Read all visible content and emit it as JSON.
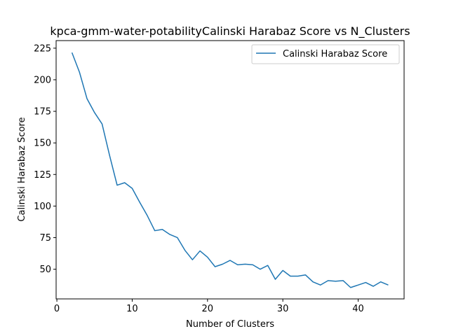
{
  "chart_data": {
    "type": "line",
    "title": "kpca-gmm-water-potabilityCalinski Harabaz Score vs N_Clusters",
    "xlabel": "Number of Clusters",
    "ylabel": "Calinski Harabaz Score",
    "xlim": [
      -0.1,
      46.1
    ],
    "ylim": [
      26.5,
      231
    ],
    "xticks": [
      0,
      10,
      20,
      30,
      40
    ],
    "yticks": [
      50,
      75,
      100,
      125,
      150,
      175,
      200,
      225
    ],
    "grid": false,
    "legend_position": "upper right",
    "series": [
      {
        "name": "Calinski Harabaz Score",
        "color": "#1f77b4",
        "x": [
          2,
          3,
          4,
          5,
          6,
          7,
          8,
          9,
          10,
          11,
          12,
          13,
          14,
          15,
          16,
          17,
          18,
          19,
          20,
          21,
          22,
          23,
          24,
          25,
          26,
          27,
          28,
          29,
          30,
          31,
          32,
          33,
          34,
          35,
          36,
          37,
          38,
          39,
          40,
          41,
          42,
          43,
          44
        ],
        "y": [
          221.5,
          206,
          185,
          174,
          165,
          140,
          116.5,
          118.5,
          114,
          103,
          92.5,
          80.5,
          81.5,
          77.5,
          75,
          65,
          57.5,
          64.5,
          59.5,
          52,
          54,
          57,
          53.5,
          54,
          53.5,
          50,
          53,
          42,
          49,
          44.5,
          44.5,
          45.5,
          40,
          37.5,
          41,
          40.5,
          41,
          35.5,
          37.5,
          39.5,
          36.5,
          40,
          37.5
        ]
      }
    ]
  }
}
